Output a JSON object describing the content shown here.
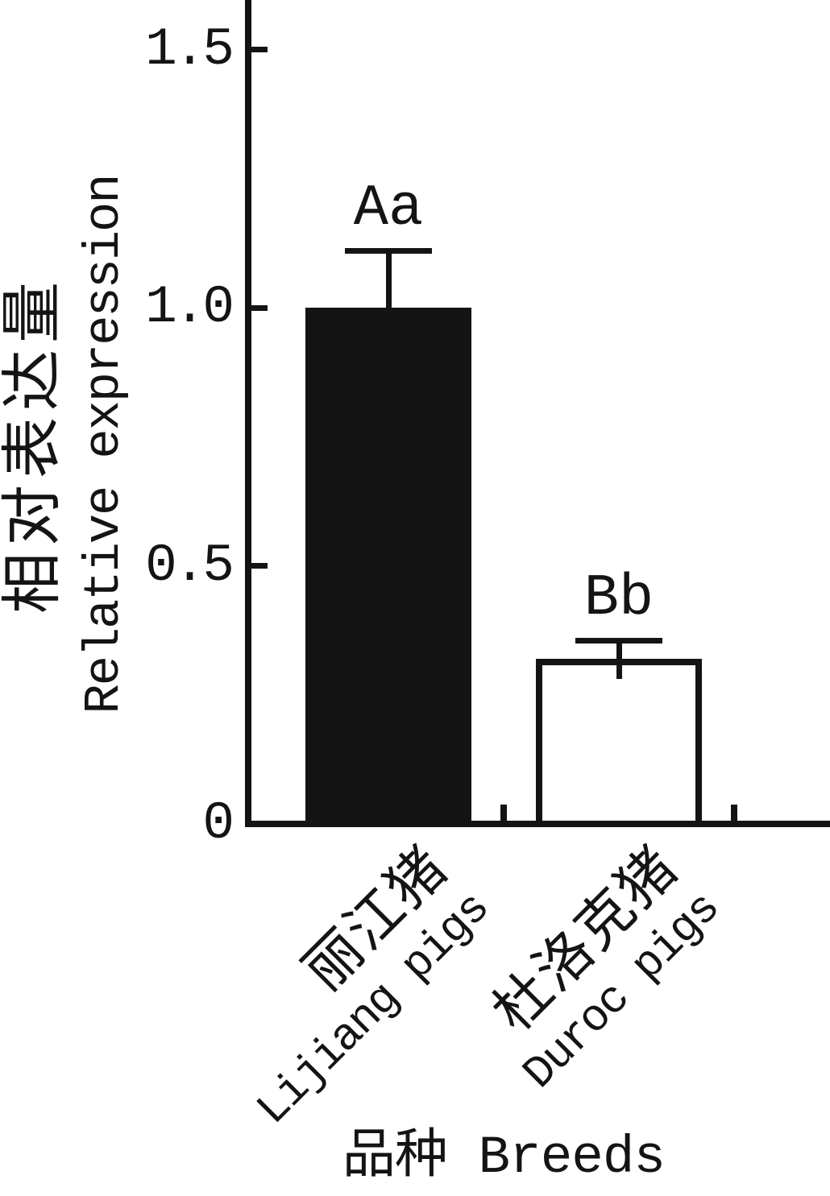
{
  "colors": {
    "ink": "#141414",
    "background": "#ffffff"
  },
  "yaxis": {
    "label_zh": "相对表达量",
    "label_en": "Relative expression",
    "tick_labels": [
      "0",
      "0.5",
      "1.0",
      "1.5"
    ]
  },
  "xaxis": {
    "title": "品种 Breeds"
  },
  "chart_data": {
    "type": "bar",
    "title": "",
    "xlabel": "品种 Breeds",
    "ylabel": "相对表达量 Relative expression",
    "categories_zh": [
      "丽江猪",
      "杜洛克猪"
    ],
    "categories_en": [
      "Lijiang pigs",
      "Duroc pigs"
    ],
    "values": [
      1.0,
      0.32
    ],
    "error_plus": [
      0.11,
      0.035
    ],
    "significance_labels": [
      "Aa",
      "Bb"
    ],
    "bar_fill": [
      "#141414",
      "#ffffff"
    ],
    "bar_edge": "#141414",
    "y_ticks": [
      0,
      0.5,
      1.0,
      1.5
    ],
    "ylim": [
      0,
      1.62
    ],
    "grid": false,
    "legend": false
  }
}
